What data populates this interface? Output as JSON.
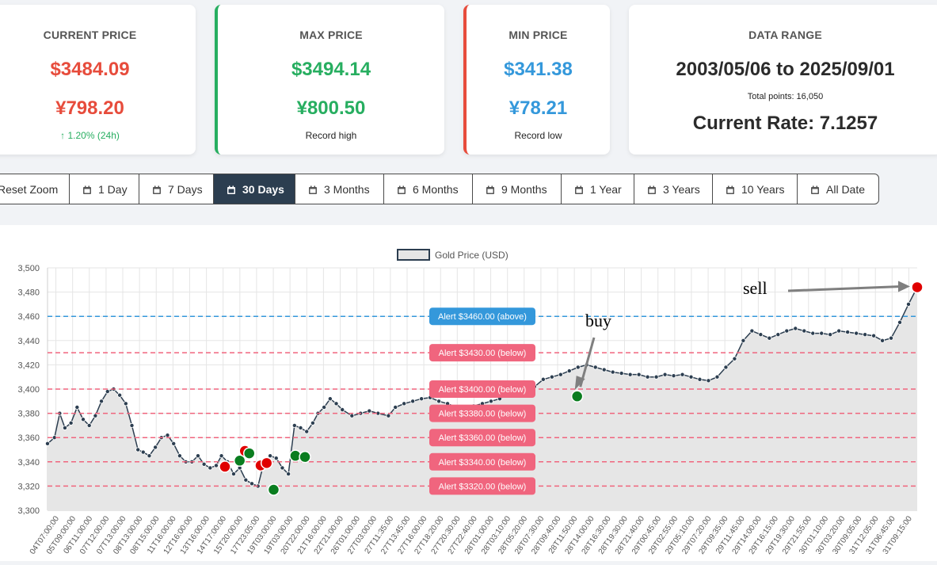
{
  "cards": {
    "current": {
      "title": "CURRENT PRICE",
      "usd": "$3484.09",
      "cny": "¥798.20",
      "change": "1.20% (24h)",
      "color": "#e74c3c"
    },
    "max": {
      "title": "MAX PRICE",
      "usd": "$3494.14",
      "cny": "¥800.50",
      "note": "Record high",
      "color": "#27ae60"
    },
    "min": {
      "title": "MIN PRICE",
      "usd": "$341.38",
      "cny": "¥78.21",
      "note": "Record low",
      "color": "#3498db"
    },
    "range": {
      "title": "DATA RANGE",
      "text": "2003/05/06 to 2025/09/01",
      "total": "Total points: 16,050",
      "rate": "Current Rate: 7.1257"
    }
  },
  "toolbar": {
    "buttons": [
      "Reset Zoom",
      "1 Day",
      "7 Days",
      "30 Days",
      "3 Months",
      "6 Months",
      "9 Months",
      "1 Year",
      "3 Years",
      "10 Years",
      "All Date"
    ],
    "active_index": 3
  },
  "chart_data": {
    "type": "line",
    "legend": "Gold Price (USD)",
    "legend_position": "top",
    "ylim": [
      3300,
      3500
    ],
    "yticks": [
      3300,
      3320,
      3340,
      3360,
      3380,
      3400,
      3420,
      3440,
      3460,
      3480,
      3500
    ],
    "ytick_labels": [
      "3,300",
      "3,320",
      "3,340",
      "3,360",
      "3,380",
      "3,400",
      "3,420",
      "3,440",
      "3,460",
      "3,480",
      "3,500"
    ],
    "grid": true,
    "xtick_labels": [
      "04T07:00:00",
      "05T09:00:00",
      "06T11:00:00",
      "07T12:00:00",
      "07T13:00:00",
      "08T13:00:00",
      "08T15:00:00",
      "11T16:00:00",
      "12T16:00:00",
      "13T16:00:00",
      "14T17:00:00",
      "15T20:00:00",
      "17T23:05:00",
      "19T03:00:00",
      "19T03:00:00",
      "20T22:00:00",
      "21T16:00:00",
      "22T21:00:00",
      "26T01:00:00",
      "27T03:00:00",
      "27T11:35:00",
      "27T13:45:00",
      "27T16:00:00",
      "27T18:20:00",
      "27T20:30:00",
      "27T22:40:00",
      "28T01:00:00",
      "28T03:10:00",
      "28T05:20:00",
      "28T07:30:00",
      "28T09:40:00",
      "28T11:50:00",
      "28T14:00:00",
      "28T16:30:00",
      "28T19:30:00",
      "28T21:40:00",
      "29T00:45:00",
      "29T02:55:00",
      "29T05:10:00",
      "29T07:20:00",
      "29T09:35:00",
      "29T11:45:00",
      "29T14:00:00",
      "29T16:15:00",
      "29T19:30:00",
      "29T21:55:00",
      "30T01:10:00",
      "30T03:20:00",
      "30T09:05:00",
      "31T12:05:00",
      "31T06:45:00",
      "31T09:15:00"
    ],
    "series": [
      {
        "name": "Gold Price (USD)",
        "color": "#2c3e50",
        "fill": "#e6e6e6",
        "x": [
          0,
          0.008,
          0.014,
          0.02,
          0.027,
          0.034,
          0.041,
          0.048,
          0.055,
          0.062,
          0.069,
          0.076,
          0.083,
          0.09,
          0.097,
          0.104,
          0.11,
          0.117,
          0.124,
          0.131,
          0.138,
          0.145,
          0.152,
          0.159,
          0.166,
          0.173,
          0.18,
          0.187,
          0.194,
          0.2,
          0.207,
          0.214,
          0.221,
          0.228,
          0.235,
          0.242,
          0.249,
          0.256,
          0.263,
          0.27,
          0.277,
          0.284,
          0.291,
          0.298,
          0.305,
          0.311,
          0.318,
          0.325,
          0.332,
          0.339,
          0.35,
          0.36,
          0.37,
          0.38,
          0.392,
          0.4,
          0.41,
          0.42,
          0.43,
          0.44,
          0.45,
          0.46,
          0.47,
          0.48,
          0.49,
          0.5,
          0.51,
          0.52,
          0.53,
          0.54,
          0.55,
          0.56,
          0.57,
          0.58,
          0.59,
          0.6,
          0.61,
          0.62,
          0.63,
          0.64,
          0.65,
          0.66,
          0.67,
          0.68,
          0.69,
          0.7,
          0.71,
          0.72,
          0.73,
          0.74,
          0.75,
          0.76,
          0.77,
          0.78,
          0.79,
          0.8,
          0.81,
          0.82,
          0.83,
          0.84,
          0.85,
          0.86,
          0.87,
          0.88,
          0.89,
          0.9,
          0.91,
          0.92,
          0.93,
          0.94,
          0.95,
          0.96,
          0.97,
          0.98,
          0.99,
          1.0
        ],
        "values": [
          3355,
          3360,
          3380,
          3368,
          3372,
          3385,
          3375,
          3370,
          3378,
          3390,
          3398,
          3400,
          3395,
          3388,
          3370,
          3350,
          3348,
          3345,
          3352,
          3360,
          3362,
          3355,
          3345,
          3340,
          3340,
          3345,
          3338,
          3335,
          3337,
          3345,
          3340,
          3330,
          3335,
          3325,
          3322,
          3320,
          3340,
          3345,
          3343,
          3335,
          3330,
          3370,
          3368,
          3365,
          3372,
          3380,
          3385,
          3392,
          3388,
          3383,
          3378,
          3380,
          3382,
          3380,
          3378,
          3385,
          3388,
          3390,
          3392,
          3393,
          3390,
          3388,
          3385,
          3384,
          3386,
          3388,
          3390,
          3392,
          3396,
          3398,
          3400,
          3402,
          3408,
          3410,
          3412,
          3415,
          3418,
          3420,
          3418,
          3416,
          3414,
          3413,
          3412,
          3412,
          3410,
          3410,
          3412,
          3411,
          3412,
          3410,
          3408,
          3407,
          3410,
          3418,
          3425,
          3440,
          3448,
          3445,
          3442,
          3445,
          3448,
          3450,
          3448,
          3446,
          3446,
          3445,
          3448,
          3447,
          3446,
          3445,
          3444,
          3440,
          3442,
          3455,
          3470,
          3484
        ]
      }
    ],
    "alerts": [
      {
        "label": "Alert $3460.00 (above)",
        "value": 3460,
        "color": "#3498db"
      },
      {
        "label": "Alert $3430.00 (below)",
        "value": 3430,
        "color": "#f0657e"
      },
      {
        "label": "Alert $3400.00 (below)",
        "value": 3400,
        "color": "#f0657e"
      },
      {
        "label": "Alert $3380.00 (below)",
        "value": 3380,
        "color": "#f0657e"
      },
      {
        "label": "Alert $3360.00 (below)",
        "value": 3360,
        "color": "#f0657e"
      },
      {
        "label": "Alert $3340.00 (below)",
        "value": 3340,
        "color": "#f0657e"
      },
      {
        "label": "Alert $3320.00 (below)",
        "value": 3320,
        "color": "#f0657e"
      }
    ],
    "markers": [
      {
        "type": "sell",
        "x": 0.204,
        "y": 3336,
        "color": "#e00000"
      },
      {
        "type": "buy",
        "x": 0.221,
        "y": 3341,
        "color": "#0a7d1f"
      },
      {
        "type": "sell",
        "x": 0.227,
        "y": 3349,
        "color": "#e00000"
      },
      {
        "type": "buy",
        "x": 0.232,
        "y": 3347,
        "color": "#0a7d1f"
      },
      {
        "type": "sell",
        "x": 0.245,
        "y": 3337,
        "color": "#e00000"
      },
      {
        "type": "sell",
        "x": 0.252,
        "y": 3339,
        "color": "#e00000"
      },
      {
        "type": "buy",
        "x": 0.26,
        "y": 3317,
        "color": "#0a7d1f"
      },
      {
        "type": "buy",
        "x": 0.285,
        "y": 3345,
        "color": "#0a7d1f"
      },
      {
        "type": "buy",
        "x": 0.296,
        "y": 3344,
        "color": "#0a7d1f"
      },
      {
        "type": "buy",
        "x": 0.609,
        "y": 3394,
        "color": "#0a7d1f"
      },
      {
        "type": "sell",
        "x": 1.0,
        "y": 3484,
        "color": "#e00000"
      }
    ],
    "annotations": [
      {
        "text": "buy"
      },
      {
        "text": "sell"
      }
    ]
  }
}
